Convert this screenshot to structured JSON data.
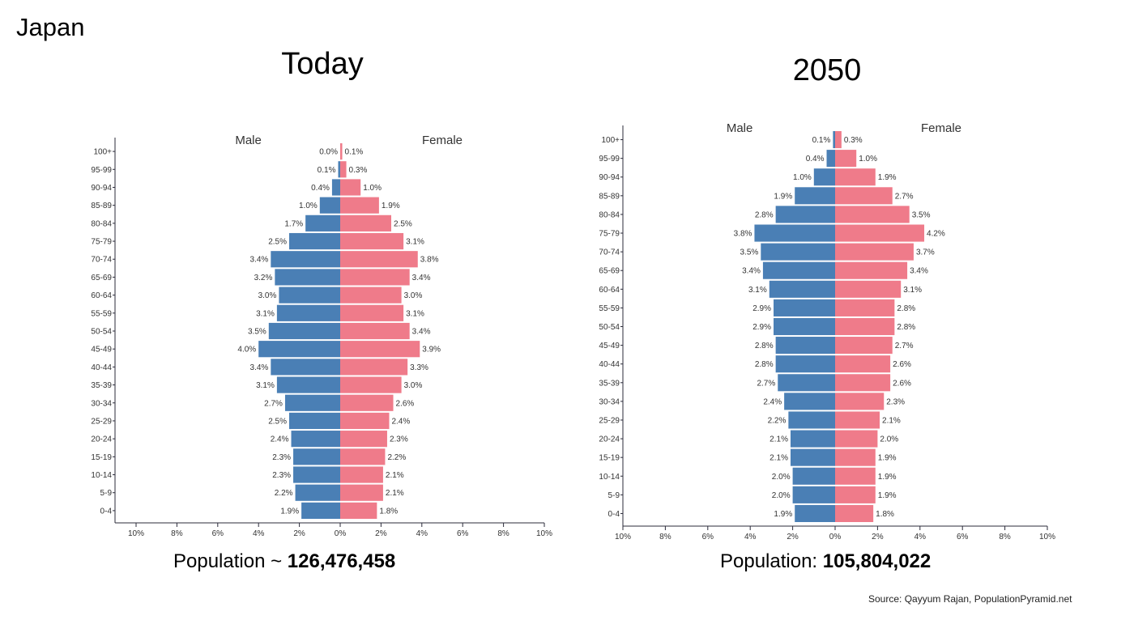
{
  "country": "Japan",
  "source": "Source: Qayyum Rajan, PopulationPyramid.net",
  "panels": {
    "today": {
      "title": "Today",
      "population_label": "Population ~ ",
      "population_value": "126,476,458"
    },
    "y2050": {
      "title": "2050",
      "population_label": "Population: ",
      "population_value": "105,804,022"
    }
  },
  "colors": {
    "male": "#4a7fb5",
    "female": "#ef7b8a",
    "axis": "#2b2b3a",
    "text": "#333333"
  },
  "chart_data": [
    {
      "type": "bar",
      "subtype": "population-pyramid",
      "title": "Today",
      "male_label": "Male",
      "female_label": "Female",
      "categories": [
        "100+",
        "95-99",
        "90-94",
        "85-89",
        "80-84",
        "75-79",
        "70-74",
        "65-69",
        "60-64",
        "55-59",
        "50-54",
        "45-49",
        "40-44",
        "35-39",
        "30-34",
        "25-29",
        "20-24",
        "15-19",
        "10-14",
        "5-9",
        "0-4"
      ],
      "series": [
        {
          "name": "Male",
          "values": [
            0.0,
            0.1,
            0.4,
            1.0,
            1.7,
            2.5,
            3.4,
            3.2,
            3.0,
            3.1,
            3.5,
            4.0,
            3.4,
            3.1,
            2.7,
            2.5,
            2.4,
            2.3,
            2.3,
            2.2,
            1.9
          ]
        },
        {
          "name": "Female",
          "values": [
            0.1,
            0.3,
            1.0,
            1.9,
            2.5,
            3.1,
            3.8,
            3.4,
            3.0,
            3.1,
            3.4,
            3.9,
            3.3,
            3.0,
            2.6,
            2.4,
            2.3,
            2.2,
            2.1,
            2.1,
            1.8
          ]
        }
      ],
      "xlim": [
        -10,
        10
      ],
      "xticks": [
        "10%",
        "8%",
        "6%",
        "4%",
        "2%",
        "0%",
        "2%",
        "4%",
        "6%",
        "8%",
        "10%"
      ],
      "value_suffix": "%"
    },
    {
      "type": "bar",
      "subtype": "population-pyramid",
      "title": "2050",
      "male_label": "Male",
      "female_label": "Female",
      "categories": [
        "100+",
        "95-99",
        "90-94",
        "85-89",
        "80-84",
        "75-79",
        "70-74",
        "65-69",
        "60-64",
        "55-59",
        "50-54",
        "45-49",
        "40-44",
        "35-39",
        "30-34",
        "25-29",
        "20-24",
        "15-19",
        "10-14",
        "5-9",
        "0-4"
      ],
      "series": [
        {
          "name": "Male",
          "values": [
            0.1,
            0.4,
            1.0,
            1.9,
            2.8,
            3.8,
            3.5,
            3.4,
            3.1,
            2.9,
            2.9,
            2.8,
            2.8,
            2.7,
            2.4,
            2.2,
            2.1,
            2.1,
            2.0,
            2.0,
            1.9
          ]
        },
        {
          "name": "Female",
          "values": [
            0.3,
            1.0,
            1.9,
            2.7,
            3.5,
            4.2,
            3.7,
            3.4,
            3.1,
            2.8,
            2.8,
            2.7,
            2.6,
            2.6,
            2.3,
            2.1,
            2.0,
            1.9,
            1.9,
            1.9,
            1.8
          ]
        }
      ],
      "xlim": [
        -10,
        10
      ],
      "xticks": [
        "10%",
        "8%",
        "6%",
        "4%",
        "2%",
        "0%",
        "2%",
        "4%",
        "6%",
        "8%",
        "10%"
      ],
      "value_suffix": "%"
    }
  ]
}
